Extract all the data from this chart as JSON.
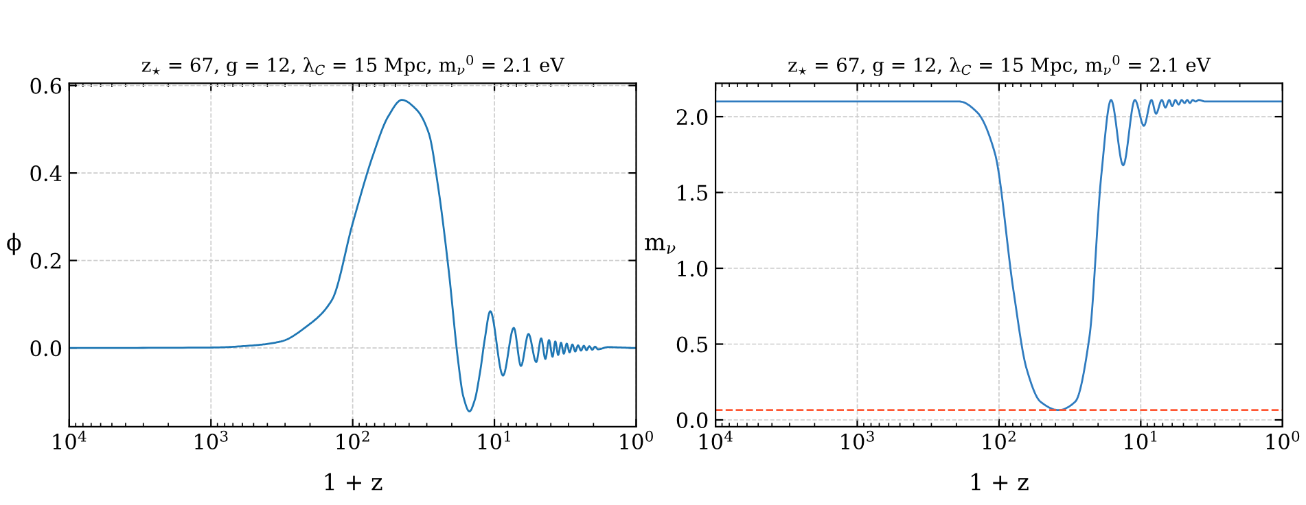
{
  "chart_data": [
    {
      "type": "line",
      "title": "z$_{⋆}$ = 67, g = 12, λ$_{C}$ = 15 Mpc, m$_{ν}$$^{0}$ = 2.1 eV",
      "xlabel": "1 + z",
      "ylabel": "ϕ",
      "log": "x",
      "grid": true,
      "xlim": [
        10000,
        1
      ],
      "xticks": [
        {
          "value": 10000,
          "label": "10$^{4}$"
        },
        {
          "value": 1000,
          "label": "10$^{3}$"
        },
        {
          "value": 100,
          "label": "10$^{2}$"
        },
        {
          "value": 10,
          "label": "10$^{1}$"
        },
        {
          "value": 1,
          "label": "10$^{0}$"
        }
      ],
      "ylim": [
        -0.18,
        0.605
      ],
      "yticks": [
        {
          "value": 0,
          "label": "0.0"
        },
        0.2,
        0.4,
        0.6
      ],
      "series": [
        {
          "color": "#1f77b4",
          "x": [
            10000,
            1000,
            500,
            320,
            210,
            140,
            100,
            72,
            56,
            45,
            35.5,
            29,
            25,
            21,
            18,
            16.6,
            15,
            13.8,
            12.6,
            11.7,
            10.7,
            8.7,
            7.3,
            6.5,
            5.75,
            5.07,
            4.68,
            4.37,
            4.12,
            3.89,
            3.72,
            3.55,
            3.39,
            3.24,
            3.09,
            2.95,
            2.82,
            2.69,
            2.57,
            2.45,
            2.34,
            2.24,
            2.14,
            2.04,
            1.95,
            1.86,
            1.58,
            1.26,
            1
          ],
          "values": [
            0.0,
            0.001,
            0.006,
            0.015,
            0.05,
            0.11,
            0.285,
            0.44,
            0.53,
            0.567,
            0.545,
            0.49,
            0.37,
            0.176,
            -0.032,
            -0.11,
            -0.145,
            -0.12,
            -0.053,
            0.02,
            0.084,
            -0.063,
            0.046,
            -0.041,
            0.032,
            -0.032,
            0.022,
            -0.025,
            0.018,
            -0.02,
            0.015,
            -0.016,
            0.012,
            -0.013,
            0.01,
            -0.01,
            0.008,
            -0.008,
            0.006,
            -0.006,
            0.005,
            -0.005,
            0.004,
            -0.004,
            0.003,
            -0.003,
            0.002,
            0.001,
            0.0
          ]
        }
      ]
    },
    {
      "type": "line",
      "title": "z$_{⋆}$ = 67, g = 12, λ$_{C}$ = 15 Mpc, m$_{ν}$$^{0}$ = 2.1 eV",
      "xlabel": "1 + z",
      "ylabel": "m$_{ν}$",
      "log": "x",
      "grid": true,
      "xlim": [
        10000,
        1
      ],
      "xticks": [
        {
          "value": 10000,
          "label": "10$^{4}$"
        },
        {
          "value": 1000,
          "label": "10$^{3}$"
        },
        {
          "value": 100,
          "label": "10$^{2}$"
        },
        {
          "value": 10,
          "label": "10$^{1}$"
        },
        {
          "value": 1,
          "label": "10$^{0}$"
        }
      ],
      "ylim": [
        -0.045,
        2.22
      ],
      "yticks": [
        {
          "value": 0,
          "label": "0.0"
        },
        0.5,
        {
          "value": 1,
          "label": "1.0"
        },
        1.5,
        {
          "value": 2,
          "label": "2.0"
        }
      ],
      "ref_lines": [
        {
          "axis": "y",
          "value": 0.065,
          "color": "#ff5733",
          "line_style": "dashed"
        }
      ],
      "series": [
        {
          "color": "#2f7bbf",
          "x": [
            10000,
            190,
            143,
            107,
            79,
            64,
            51,
            38,
            29,
            23,
            19,
            16.2,
            13.3,
            11,
            9.5,
            8.4,
            7.8,
            7.1,
            6.7,
            6.3,
            6.0,
            5.7,
            5.4,
            5.15,
            4.9,
            4.7,
            4.5,
            4.3,
            4.1,
            3.9,
            3.5,
            1
          ],
          "values": [
            2.1,
            2.1,
            2.03,
            1.76,
            0.85,
            0.34,
            0.12,
            0.065,
            0.12,
            0.55,
            1.61,
            2.11,
            1.68,
            2.11,
            1.94,
            2.11,
            2.02,
            2.11,
            2.06,
            2.11,
            2.07,
            2.11,
            2.08,
            2.11,
            2.09,
            2.11,
            2.09,
            2.11,
            2.1,
            2.11,
            2.1,
            2.1
          ]
        }
      ]
    }
  ]
}
